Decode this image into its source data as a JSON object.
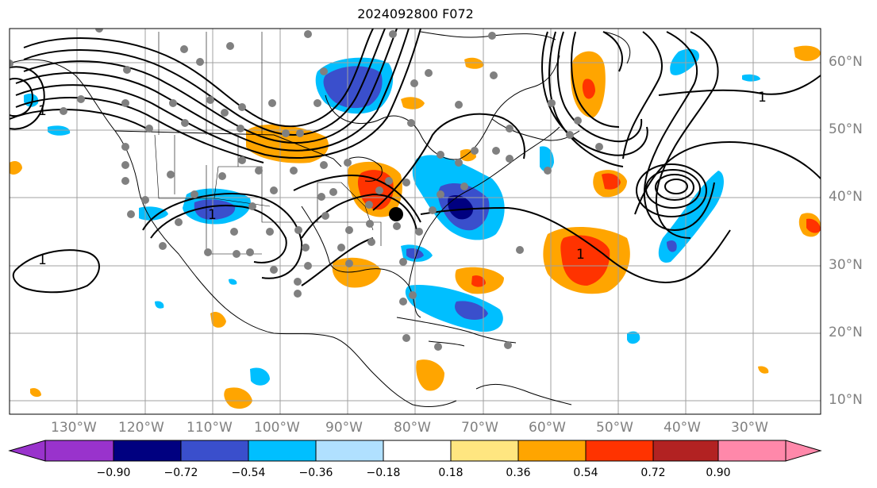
{
  "title": "2024092800 F072",
  "lon_labels": [
    "130°W",
    "120°W",
    "110°W",
    "100°W",
    "90°W",
    "80°W",
    "70°W",
    "60°W",
    "50°W",
    "40°W",
    "30°W"
  ],
  "lat_labels": [
    "60°N",
    "50°N",
    "40°N",
    "30°N",
    "20°N",
    "10°N"
  ],
  "contour_label": "1",
  "colorbar": {
    "ticks": [
      "−0.90",
      "−0.72",
      "−0.54",
      "−0.36",
      "−0.18",
      "0.18",
      "0.36",
      "0.54",
      "0.72",
      "0.90"
    ],
    "colors": [
      "#9933cc",
      "#000080",
      "#3a4fcc",
      "#00bfff",
      "#b0e0ff",
      "#ffffff",
      "#ffe680",
      "#ffa500",
      "#ff3300",
      "#b22222",
      "#ff88aa"
    ]
  }
}
